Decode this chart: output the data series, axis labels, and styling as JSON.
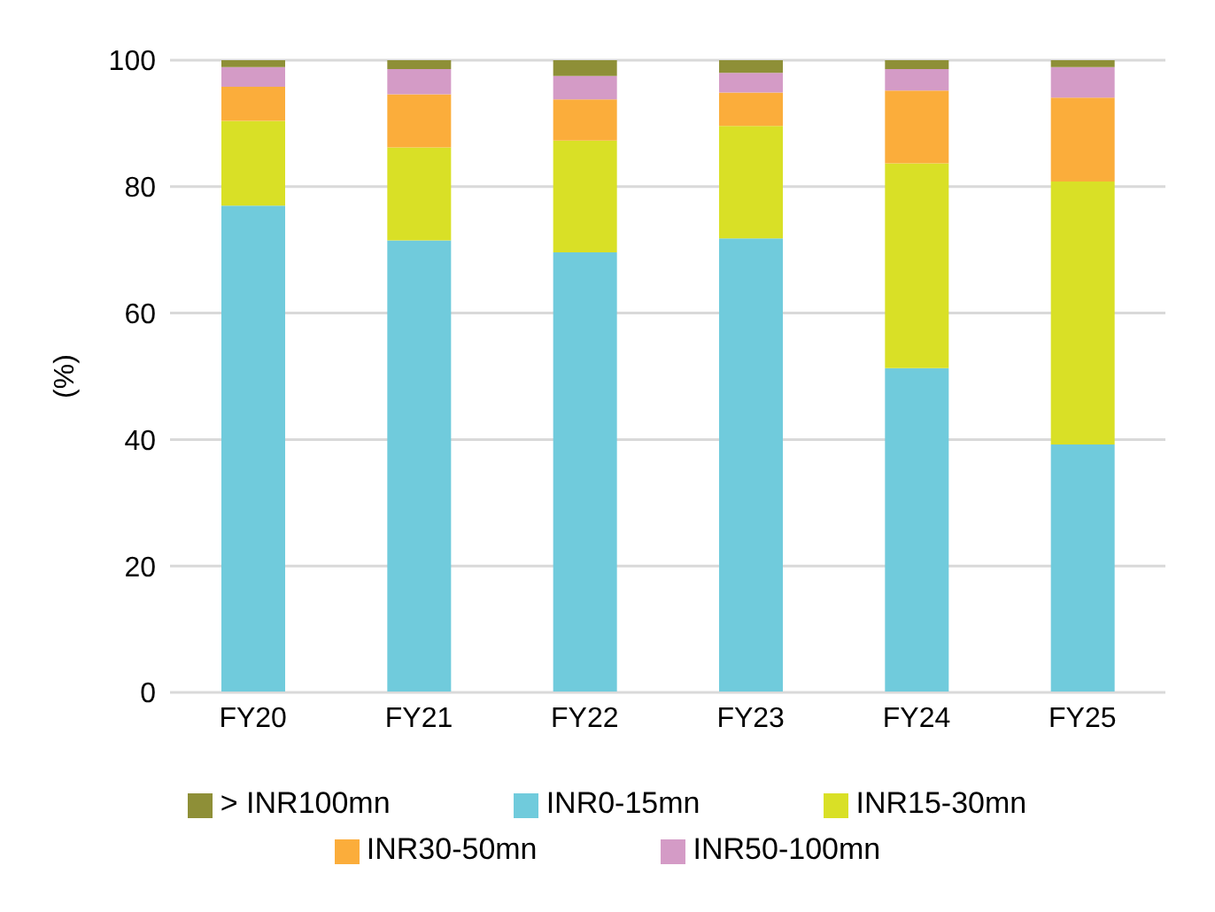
{
  "chart_data": {
    "type": "bar",
    "stacked": true,
    "ylabel": "(%)",
    "categories": [
      "FY20",
      "FY21",
      "FY22",
      "FY23",
      "FY24",
      "FY25"
    ],
    "series": [
      {
        "name": "INR0-15mn",
        "color": "#70cbdc",
        "values": [
          77,
          71.5,
          69.6,
          71.8,
          51.3,
          39.2
        ]
      },
      {
        "name": "INR15-30mn",
        "color": "#d9e026",
        "values": [
          13.4,
          14.7,
          17.7,
          17.8,
          32.4,
          41.6
        ]
      },
      {
        "name": "INR30-50mn",
        "color": "#fbad3b",
        "values": [
          5.4,
          8.4,
          6.5,
          5.3,
          11.5,
          13.3
        ]
      },
      {
        "name": "INR50-100mn",
        "color": "#d49bc6",
        "values": [
          3.1,
          4,
          3.7,
          3.1,
          3.4,
          4.8
        ]
      },
      {
        "name": "> INR100mn",
        "color": "#8e8f37",
        "values": [
          1.1,
          1.4,
          2.5,
          2,
          1.4,
          1.1
        ]
      }
    ],
    "ylim": [
      0,
      100
    ],
    "yticks": [
      0,
      20,
      40,
      60,
      80,
      100
    ],
    "grid": "y",
    "legend": "bottom"
  }
}
